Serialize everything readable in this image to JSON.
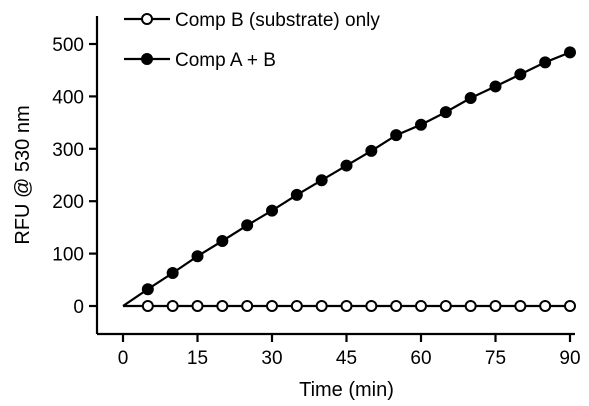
{
  "chart_data": {
    "type": "line",
    "title": "",
    "xlabel": "Time (min)",
    "ylabel": "RFU @ 530 nm",
    "xlim": [
      0,
      90
    ],
    "ylim": [
      0,
      500
    ],
    "xticks": [
      0,
      15,
      30,
      45,
      60,
      75,
      90
    ],
    "yticks": [
      0,
      100,
      200,
      300,
      400,
      500
    ],
    "xtick_labels": [
      "0",
      "15",
      "30",
      "45",
      "60",
      "75",
      "90"
    ],
    "ytick_labels": [
      "0",
      "100",
      "200",
      "300",
      "400",
      "500"
    ],
    "grid": false,
    "legend_position": "top-left",
    "series": [
      {
        "name": "Comp B (substrate) only",
        "marker": "open-circle",
        "color": "#000000",
        "x": [
          0,
          5,
          10,
          15,
          20,
          25,
          30,
          35,
          40,
          45,
          50,
          55,
          60,
          65,
          70,
          75,
          80,
          85,
          90
        ],
        "y": [
          0,
          0,
          0,
          0,
          0,
          0,
          0,
          0,
          0,
          0,
          0,
          0,
          0,
          0,
          0,
          0,
          0,
          0,
          0
        ],
        "marker_from_index": 1
      },
      {
        "name": "Comp A + B",
        "marker": "filled-circle",
        "color": "#000000",
        "x": [
          0,
          5,
          10,
          15,
          20,
          25,
          30,
          35,
          40,
          45,
          50,
          55,
          60,
          65,
          70,
          75,
          80,
          85,
          90
        ],
        "y": [
          0,
          32,
          63,
          95,
          124,
          154,
          182,
          212,
          240,
          268,
          296,
          326,
          346,
          370,
          397,
          419,
          442,
          465,
          484
        ],
        "marker_from_index": 1
      }
    ]
  }
}
